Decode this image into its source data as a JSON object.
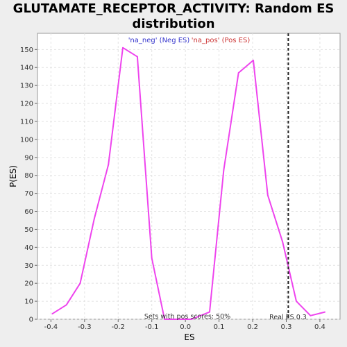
{
  "chart_data": {
    "type": "line",
    "title": "GLUTAMATE_RECEPTOR_ACTIVITY: Random ES distribution",
    "xlabel": "ES",
    "ylabel": "P(ES)",
    "xlim": [
      -0.44,
      0.46
    ],
    "ylim": [
      0,
      159
    ],
    "x_ticks": [
      "-0.4",
      "-0.3",
      "-0.2",
      "-0.1",
      "0.0",
      "0.1",
      "0.2",
      "0.3",
      "0.4"
    ],
    "y_ticks": [
      "0",
      "10",
      "20",
      "30",
      "40",
      "50",
      "60",
      "70",
      "80",
      "90",
      "100",
      "110",
      "120",
      "130",
      "140",
      "150"
    ],
    "grid": true,
    "legend": [
      {
        "label": "'na_neg' (Neg ES)",
        "color": "#3333cc"
      },
      {
        "label": "'na_pos' (Pos ES)",
        "color": "#cc3333"
      }
    ],
    "series": [
      {
        "color": "#ee44ee",
        "x": [
          -0.396,
          -0.354,
          -0.313,
          -0.271,
          -0.229,
          -0.186,
          -0.143,
          -0.1,
          -0.062,
          -0.022,
          0.018,
          0.072,
          0.114,
          0.158,
          0.202,
          0.245,
          0.289,
          0.33,
          0.372,
          0.415
        ],
        "y": [
          3,
          8,
          20,
          56,
          86,
          151,
          146,
          34,
          0,
          0,
          0,
          4,
          83,
          137,
          144,
          69,
          43,
          10,
          2,
          4
        ]
      }
    ],
    "real_es": {
      "x": 0.306,
      "label": "Real ES 0.3"
    },
    "annotation": "Sets with pos scores: 50%"
  }
}
